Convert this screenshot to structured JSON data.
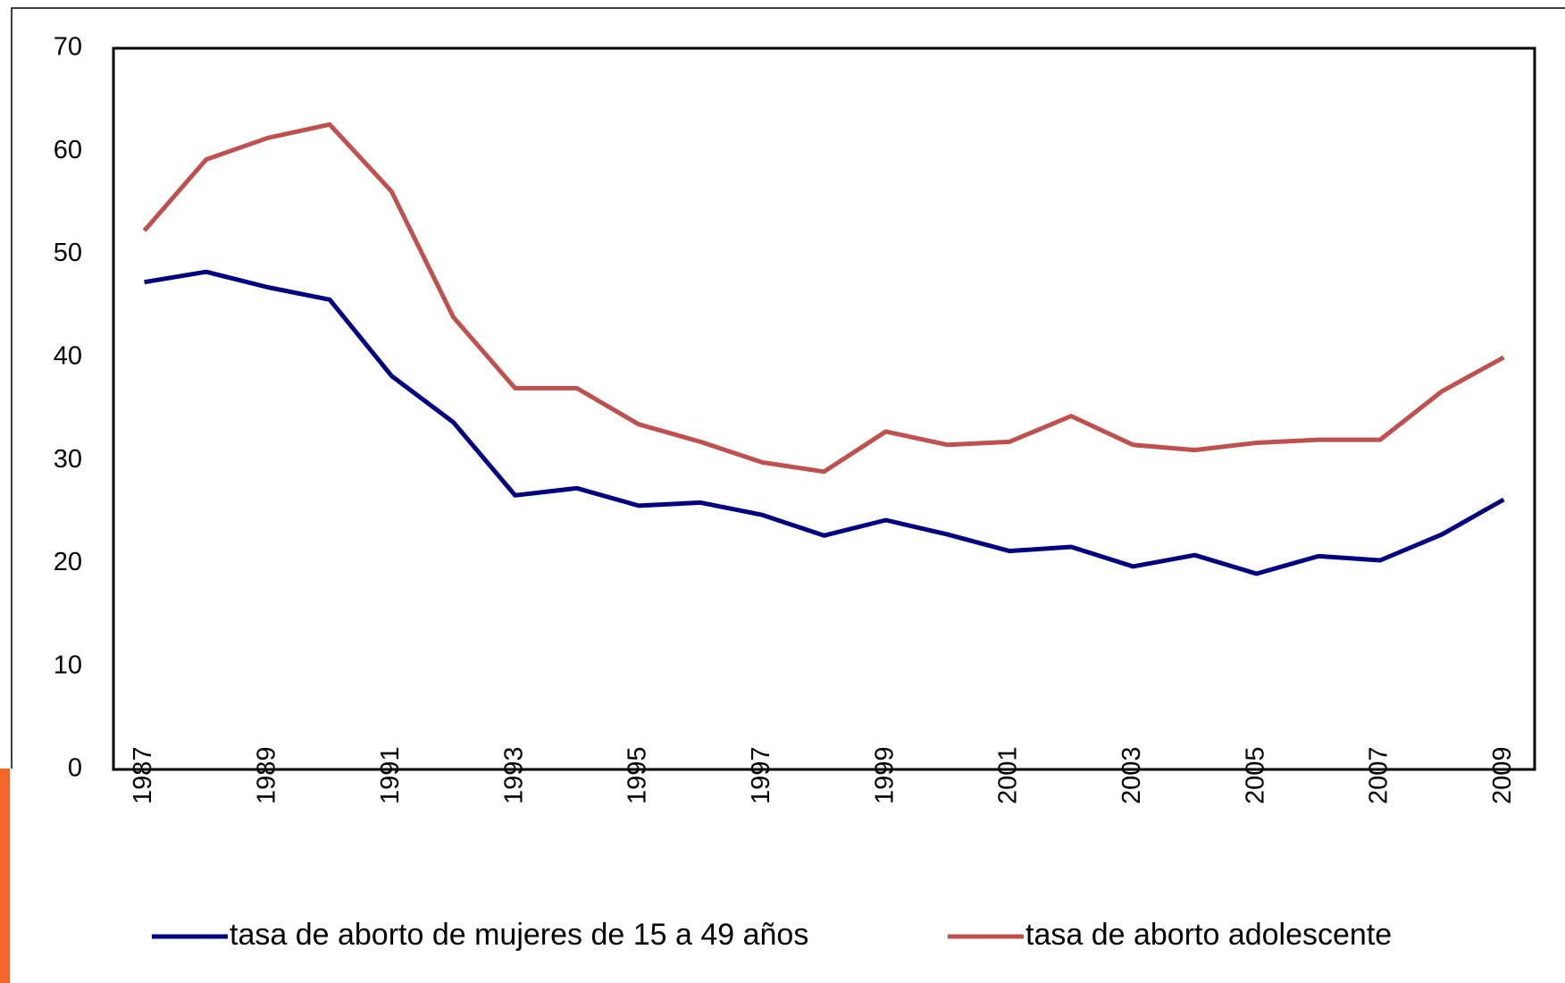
{
  "chart_data": {
    "type": "line",
    "categories": [
      "1987",
      null,
      "1989",
      null,
      "1991",
      null,
      "1993",
      null,
      "1995",
      null,
      "1997",
      null,
      "1999",
      null,
      "2001",
      null,
      "2003",
      null,
      "2005",
      null,
      "2007",
      null,
      "2009"
    ],
    "series": [
      {
        "name": "tasa de aborto de mujeres de 15 a 49 años",
        "color": "#000080",
        "values": [
          47.3,
          48.3,
          46.8,
          45.6,
          38.2,
          33.7,
          26.6,
          27.3,
          25.6,
          25.9,
          24.7,
          22.7,
          24.2,
          22.8,
          21.2,
          21.6,
          19.7,
          20.8,
          19.0,
          20.7,
          20.3,
          22.8,
          26.2
        ]
      },
      {
        "name": "tasa de aborto adolescente",
        "color": "#c0504d",
        "values": [
          52.3,
          59.2,
          61.3,
          62.6,
          56.1,
          43.9,
          37.0,
          37.0,
          33.5,
          31.8,
          29.8,
          28.9,
          32.8,
          31.5,
          31.8,
          34.3,
          31.5,
          31.0,
          31.7,
          32.0,
          32.0,
          36.7,
          40.0
        ]
      }
    ],
    "ylim": [
      0,
      70
    ],
    "yticks": [
      0,
      10,
      20,
      30,
      40,
      50,
      60,
      70
    ],
    "grid": false,
    "legend": "bottom"
  }
}
